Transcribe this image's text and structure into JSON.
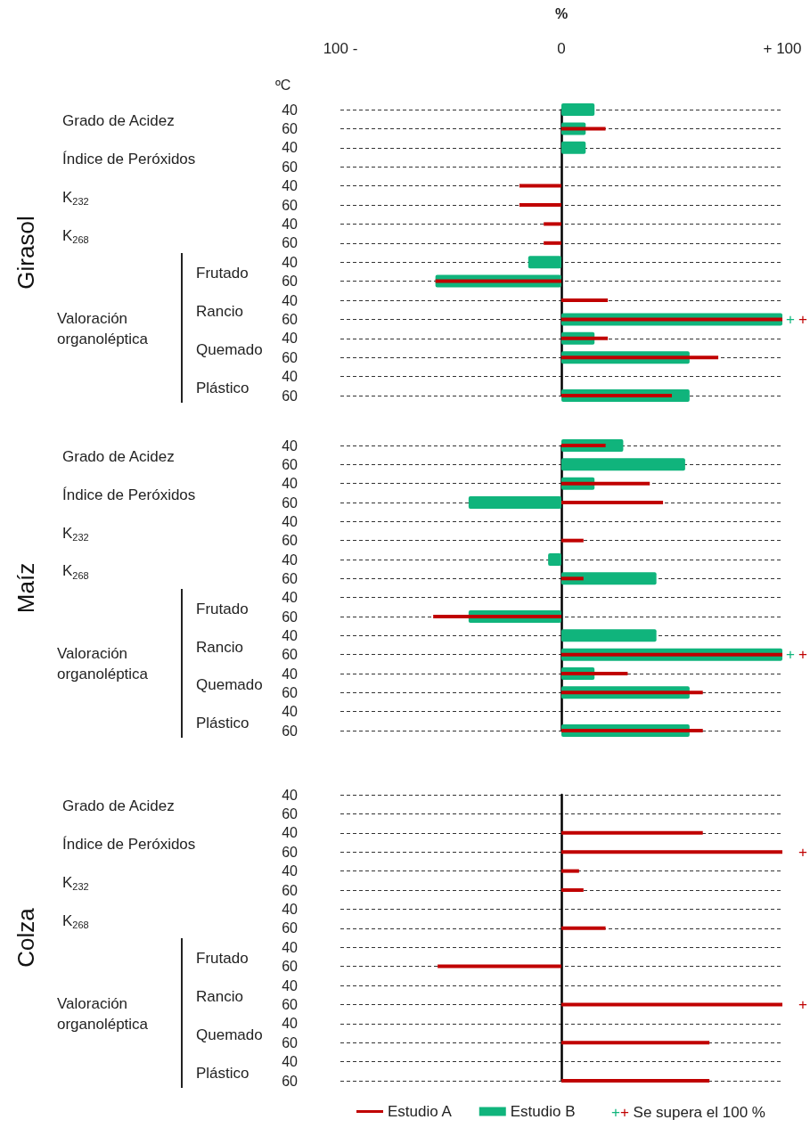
{
  "chart_data": [
    {
      "type": "bar",
      "orientation": "horizontal",
      "ylabel": "Girasol",
      "xlabel": "%",
      "categories": [
        "40",
        "60",
        "40",
        "60",
        "40",
        "60",
        "40",
        "60",
        "40",
        "60",
        "40",
        "60",
        "40",
        "60",
        "40",
        "60"
      ],
      "annotations": [
        "Grado de Acidez",
        "Índice de Peróxidos",
        "K$_{232}$",
        "K$_{268}$",
        "Frutado",
        "Rancio",
        "Quemado",
        "Plástico",
        "Valoración organoléptica",
        "ºC"
      ],
      "series": [
        {
          "color": "#c00000",
          "values": [
            null,
            20,
            null,
            null,
            -19,
            -19,
            -8,
            -8,
            null,
            -57,
            21,
            100,
            21,
            71,
            null,
            50
          ],
          "value_labels": [
            null,
            null,
            null,
            null,
            null,
            null,
            null,
            null,
            null,
            null,
            null,
            "+",
            null,
            null,
            null,
            null
          ]
        },
        {
          "color": "#10b47c",
          "values": [
            15,
            11,
            11,
            null,
            null,
            null,
            null,
            null,
            -15,
            -57,
            null,
            100,
            15,
            58,
            null,
            58
          ],
          "value_labels": [
            null,
            null,
            null,
            null,
            null,
            null,
            null,
            null,
            null,
            null,
            null,
            "+",
            null,
            null,
            null,
            null
          ]
        }
      ],
      "xlim": [
        -100,
        100
      ],
      "xticks": [
        {
          "value": -100,
          "label": "100 -"
        },
        0,
        {
          "value": 100,
          "label": "+ 100"
        }
      ],
      "grid": "y",
      "legend": false
    },
    {
      "type": "bar",
      "orientation": "horizontal",
      "ylabel": "Maíz",
      "categories": [
        "40",
        "60",
        "40",
        "60",
        "40",
        "60",
        "40",
        "60",
        "40",
        "60",
        "40",
        "60",
        "40",
        "60",
        "40",
        "60"
      ],
      "annotations": [
        "Grado de Acidez",
        "Índice de Peróxidos",
        "K$_{232}$",
        "K$_{268}$",
        "Frutado",
        "Rancio",
        "Quemado",
        "Plástico",
        "Valoración organoléptica"
      ],
      "series": [
        {
          "color": "#c00000",
          "values": [
            20,
            null,
            40,
            46,
            null,
            10,
            null,
            10,
            null,
            -58,
            null,
            100,
            30,
            64,
            null,
            64
          ],
          "value_labels": [
            null,
            null,
            null,
            null,
            null,
            null,
            null,
            null,
            null,
            null,
            null,
            "+",
            null,
            null,
            null,
            null
          ]
        },
        {
          "color": "#10b47c",
          "values": [
            28,
            56,
            15,
            -42,
            null,
            null,
            -6,
            43,
            null,
            -42,
            43,
            100,
            15,
            58,
            null,
            58
          ],
          "value_labels": [
            null,
            null,
            null,
            null,
            null,
            null,
            null,
            null,
            null,
            null,
            null,
            "+",
            null,
            null,
            null,
            null
          ]
        }
      ],
      "xlim": [
        -100,
        100
      ],
      "tick_labels": "y",
      "grid": "y",
      "legend": false
    },
    {
      "type": "bar",
      "orientation": "horizontal",
      "ylabel": "Colza",
      "categories": [
        "40",
        "60",
        "40",
        "60",
        "40",
        "60",
        "40",
        "60",
        "40",
        "60",
        "40",
        "60",
        "40",
        "60",
        "40",
        "60"
      ],
      "annotations": [
        "Grado de Acidez",
        "Índice de Peróxidos",
        "K$_{232}$",
        "K$_{268}$",
        "Frutado",
        "Rancio",
        "Quemado",
        "Plástico",
        "Valoración organoléptica",
        "++ Se supera el 100 %"
      ],
      "series": [
        {
          "name": "Estudio A",
          "color": "#c00000",
          "values": [
            null,
            null,
            64,
            100,
            8,
            10,
            null,
            20,
            null,
            -56,
            null,
            100,
            null,
            67,
            null,
            67
          ],
          "value_labels": [
            null,
            null,
            null,
            "+",
            null,
            null,
            null,
            null,
            null,
            null,
            null,
            "+",
            null,
            null,
            null,
            null
          ]
        },
        {
          "name": "Estudio B",
          "color": "#10b47c",
          "values": [
            null,
            null,
            null,
            null,
            null,
            null,
            null,
            null,
            null,
            null,
            null,
            null,
            null,
            null,
            null,
            null
          ]
        }
      ],
      "xlim": [
        -100,
        100
      ],
      "tick_labels": "y",
      "grid": "y",
      "legend": "bottom"
    }
  ]
}
